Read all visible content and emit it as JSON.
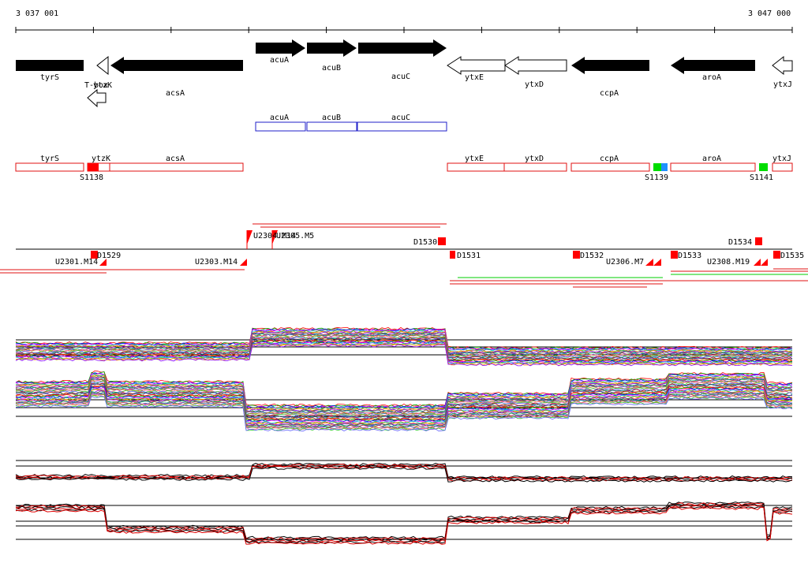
{
  "ruler": {
    "start_label": "3 037 001",
    "end_label": "3 047 000"
  },
  "genes": [
    {
      "name": "tyrS",
      "strand": "-",
      "fill": "solid"
    },
    {
      "name": "ytzK",
      "strand": "-",
      "fill": "open"
    },
    {
      "name": "acsA",
      "strand": "-",
      "fill": "solid"
    },
    {
      "name": "T-box",
      "strand": "-",
      "fill": "open"
    },
    {
      "name": "acuA",
      "strand": "+",
      "fill": "solid"
    },
    {
      "name": "acuB",
      "strand": "+",
      "fill": "solid"
    },
    {
      "name": "acuC",
      "strand": "+",
      "fill": "solid"
    },
    {
      "name": "ytxE",
      "strand": "-",
      "fill": "open"
    },
    {
      "name": "ytxD",
      "strand": "-",
      "fill": "open"
    },
    {
      "name": "ccpA",
      "strand": "-",
      "fill": "solid"
    },
    {
      "name": "aroA",
      "strand": "-",
      "fill": "solid"
    },
    {
      "name": "ytxJ",
      "strand": "-",
      "fill": "open"
    }
  ],
  "operons_blue": [
    "acuA",
    "acuB",
    "acuC"
  ],
  "operons_red": [
    "tyrS",
    "ytzK",
    "acsA",
    "ytxE",
    "ytxD",
    "ccpA",
    "aroA",
    "ytxJ"
  ],
  "sites": [
    "S1138",
    "S1139",
    "S1141"
  ],
  "segments_upper": [
    "U2304.M14",
    "U2305.M5",
    "D1530",
    "D1534"
  ],
  "segments_lower": [
    "U2301.M14",
    "D1529",
    "U2303.M14",
    "D1531",
    "D1532",
    "U2306.M7",
    "D1533",
    "U2308.M19",
    "D1535"
  ],
  "colors": {
    "gene": "#000000",
    "operon_blue": "#1f1fc8",
    "operon_red": "#e01010",
    "site_red": "#ff0000",
    "site_green": "#00dd00",
    "site_blue": "#1e90ff",
    "avg_black": "#000000",
    "avg_red": "#e00000"
  }
}
